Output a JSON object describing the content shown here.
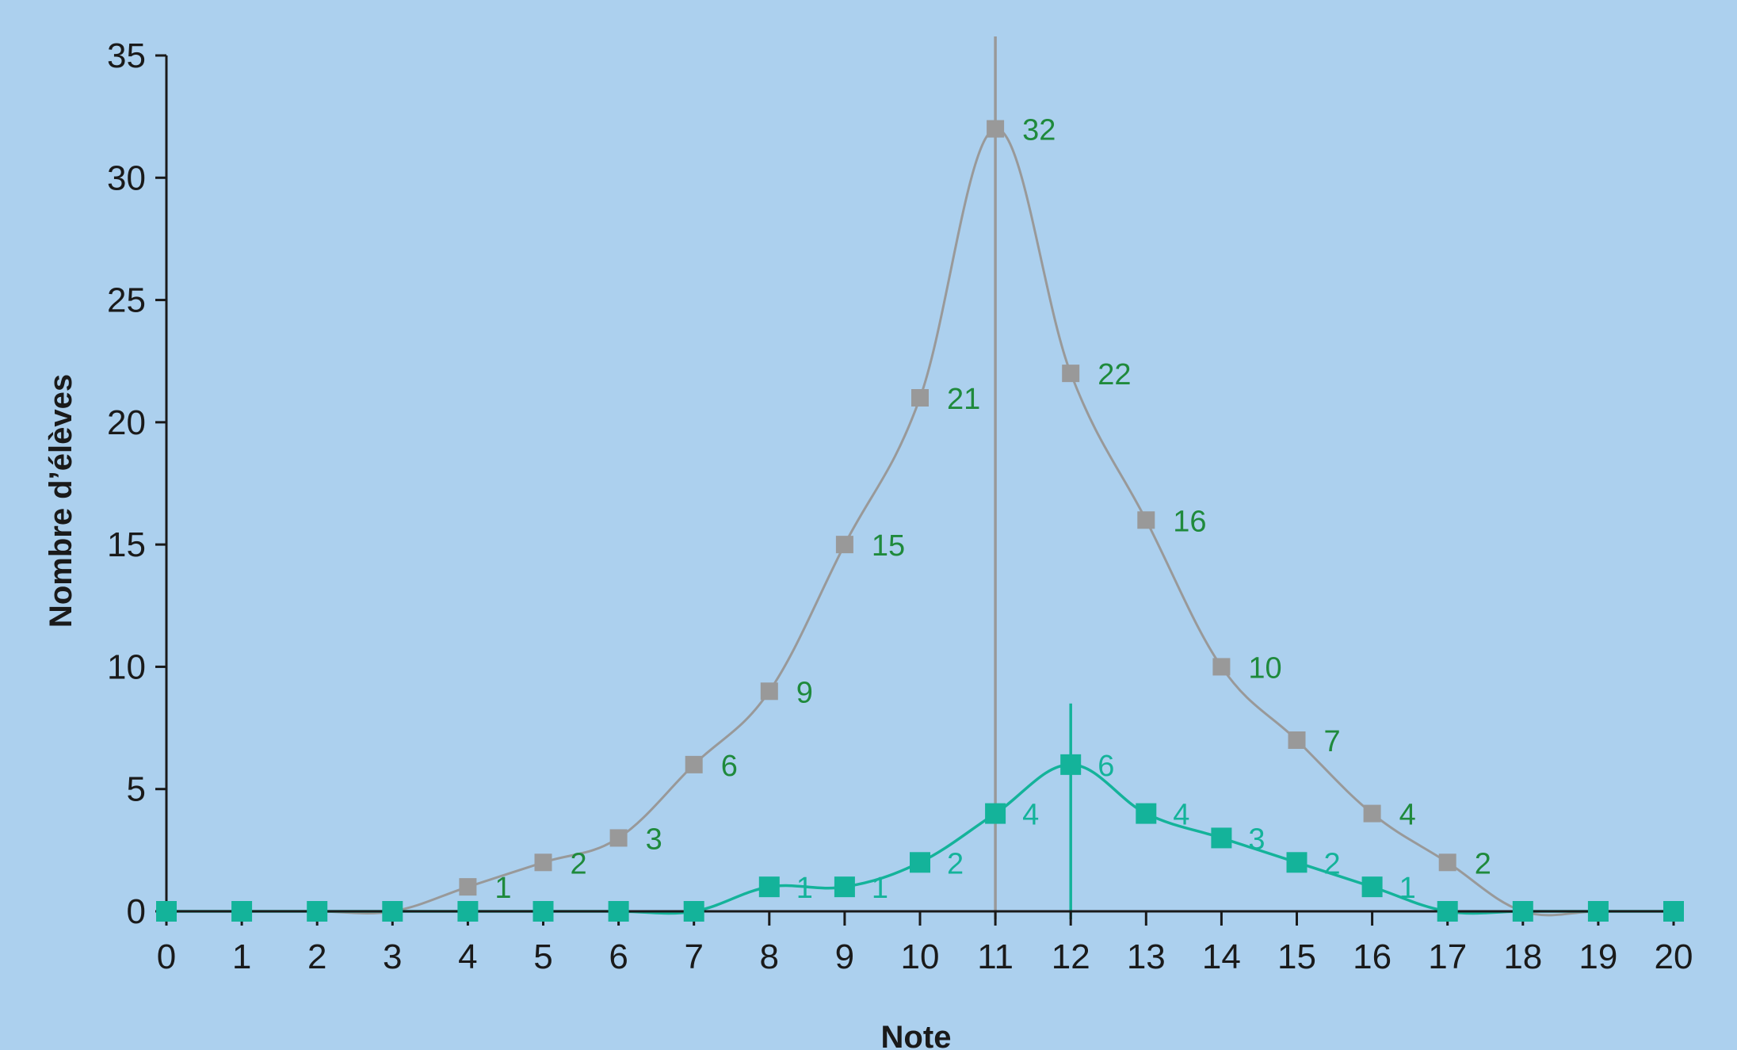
{
  "chart_data": {
    "type": "line",
    "title": "",
    "xlabel": "Note",
    "ylabel": "Nombre d’élèves",
    "xlim": [
      0,
      20
    ],
    "ylim": [
      0,
      35
    ],
    "x_ticks": [
      0,
      1,
      2,
      3,
      4,
      5,
      6,
      7,
      8,
      9,
      10,
      11,
      12,
      13,
      14,
      15,
      16,
      17,
      18,
      19,
      20
    ],
    "y_ticks": [
      0,
      5,
      10,
      15,
      20,
      25,
      30,
      35
    ],
    "grid": false,
    "legend": "none",
    "series": [
      {
        "color": "#999999",
        "label_color": "#1f8a3c",
        "marker": "square",
        "x": [
          0,
          1,
          2,
          3,
          4,
          5,
          6,
          7,
          8,
          9,
          10,
          11,
          12,
          13,
          14,
          15,
          16,
          17,
          18,
          19,
          20
        ],
        "values": [
          0,
          0,
          0,
          0,
          1,
          2,
          3,
          6,
          9,
          15,
          21,
          32,
          22,
          16,
          10,
          7,
          4,
          2,
          0,
          0,
          0
        ],
        "labeled": [
          4,
          5,
          6,
          7,
          8,
          9,
          10,
          11,
          12,
          13,
          14,
          15,
          16,
          17
        ],
        "reference_line_x": 11
      },
      {
        "color": "#14b39a",
        "label_color": "#14b39a",
        "marker": "square",
        "x": [
          0,
          1,
          2,
          3,
          4,
          5,
          6,
          7,
          8,
          9,
          10,
          11,
          12,
          13,
          14,
          15,
          16,
          17,
          18,
          19,
          20
        ],
        "values": [
          0,
          0,
          0,
          0,
          0,
          0,
          0,
          0,
          1,
          1,
          2,
          4,
          6,
          4,
          3,
          2,
          1,
          0,
          0,
          0,
          0
        ],
        "labeled": [
          8,
          9,
          10,
          11,
          12,
          13,
          14,
          15,
          16
        ],
        "reference_line_x": 12,
        "reference_line_top": 8.5
      }
    ]
  }
}
